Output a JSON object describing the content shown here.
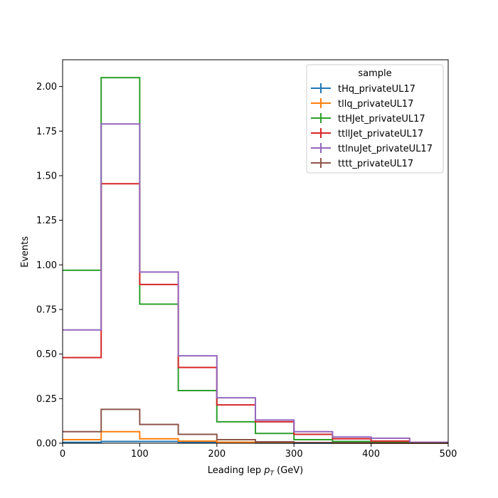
{
  "chart_data": {
    "type": "histogram-step",
    "xlabel_main": "Leading lep ",
    "xlabel_math": "p",
    "xlabel_sub": "T",
    "xlabel_unit": " (GeV)",
    "ylabel": "Events",
    "xlim": [
      0,
      500
    ],
    "ylim": [
      0,
      2.15
    ],
    "xticks": [
      0,
      100,
      200,
      300,
      400,
      500
    ],
    "yticks": [
      0.0,
      0.25,
      0.5,
      0.75,
      1.0,
      1.25,
      1.5,
      1.75,
      2.0
    ],
    "ytick_labels": [
      "0.00",
      "0.25",
      "0.50",
      "0.75",
      "1.00",
      "1.25",
      "1.50",
      "1.75",
      "2.00"
    ],
    "bin_edges": [
      0,
      50,
      100,
      150,
      200,
      250,
      300,
      350,
      400,
      450,
      500
    ],
    "legend": {
      "title": "sample",
      "position": "top-right"
    },
    "grid": false,
    "series": [
      {
        "name": "tHq_privateUL17",
        "color": "#1f77b4",
        "values": [
          0.005,
          0.01,
          0.01,
          0.004,
          0.002,
          0.001,
          0.0005,
          0.0003,
          0.0002,
          0.0001
        ]
      },
      {
        "name": "tllq_privateUL17",
        "color": "#ff7f0e",
        "values": [
          0.02,
          0.065,
          0.025,
          0.012,
          0.006,
          0.003,
          0.002,
          0.001,
          0.0005,
          0.0003
        ]
      },
      {
        "name": "ttHJet_privateUL17",
        "color": "#2ca02c",
        "values": [
          0.97,
          2.05,
          0.78,
          0.295,
          0.12,
          0.055,
          0.02,
          0.01,
          0.005,
          0.002
        ]
      },
      {
        "name": "ttllJet_privateUL17",
        "color": "#d62728",
        "values": [
          0.48,
          1.455,
          0.89,
          0.425,
          0.215,
          0.12,
          0.05,
          0.025,
          0.012,
          0.005
        ]
      },
      {
        "name": "ttlnuJet_privateUL17",
        "color": "#9467bd",
        "values": [
          0.635,
          1.79,
          0.96,
          0.49,
          0.255,
          0.13,
          0.065,
          0.035,
          0.028,
          0.005
        ]
      },
      {
        "name": "tttt_privateUL17",
        "color": "#8c564b",
        "values": [
          0.065,
          0.19,
          0.105,
          0.05,
          0.02,
          0.008,
          0.004,
          0.002,
          0.001,
          0.0005
        ]
      }
    ]
  }
}
